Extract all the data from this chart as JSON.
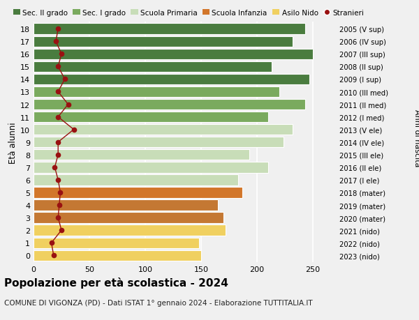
{
  "ages": [
    18,
    17,
    16,
    15,
    14,
    13,
    12,
    11,
    10,
    9,
    8,
    7,
    6,
    5,
    4,
    3,
    2,
    1,
    0
  ],
  "years": [
    "2005 (V sup)",
    "2006 (IV sup)",
    "2007 (III sup)",
    "2008 (II sup)",
    "2009 (I sup)",
    "2010 (III med)",
    "2011 (II med)",
    "2012 (I med)",
    "2013 (V ele)",
    "2014 (IV ele)",
    "2015 (III ele)",
    "2016 (II ele)",
    "2017 (I ele)",
    "2018 (mater)",
    "2019 (mater)",
    "2020 (mater)",
    "2021 (nido)",
    "2022 (nido)",
    "2023 (nido)"
  ],
  "bar_values": [
    243,
    232,
    250,
    213,
    247,
    220,
    243,
    210,
    232,
    224,
    193,
    210,
    183,
    187,
    165,
    170,
    172,
    148,
    150
  ],
  "bar_colors": [
    "#4a7c3f",
    "#4a7c3f",
    "#4a7c3f",
    "#4a7c3f",
    "#4a7c3f",
    "#7aaa5e",
    "#7aaa5e",
    "#7aaa5e",
    "#c8ddb8",
    "#c8ddb8",
    "#c8ddb8",
    "#c8ddb8",
    "#c8ddb8",
    "#d2762a",
    "#c47833",
    "#c47833",
    "#f0d060",
    "#f0d060",
    "#f0d060"
  ],
  "stranieri_values": [
    22,
    20,
    25,
    22,
    28,
    22,
    31,
    22,
    36,
    22,
    22,
    19,
    22,
    24,
    23,
    22,
    25,
    16,
    18
  ],
  "stranieri_color": "#991111",
  "title": "Popolazione per età scolastica - 2024",
  "subtitle": "COMUNE DI VIGONZA (PD) - Dati ISTAT 1° gennaio 2024 - Elaborazione TUTTITALIA.IT",
  "ylabel": "Età alunni",
  "right_label": "Anni di nascita",
  "xlim": [
    0,
    270
  ],
  "xticks": [
    0,
    50,
    100,
    150,
    200,
    250
  ],
  "legend_labels": [
    "Sec. II grado",
    "Sec. I grado",
    "Scuola Primaria",
    "Scuola Infanzia",
    "Asilo Nido",
    "Stranieri"
  ],
  "legend_colors": [
    "#4a7c3f",
    "#7aaa5e",
    "#c8ddb8",
    "#d2762a",
    "#f0d060",
    "#991111"
  ],
  "bg_color": "#f0f0f0",
  "bar_height": 0.85,
  "grid_color": "#ffffff",
  "figsize": [
    6.0,
    4.6
  ],
  "dpi": 100
}
